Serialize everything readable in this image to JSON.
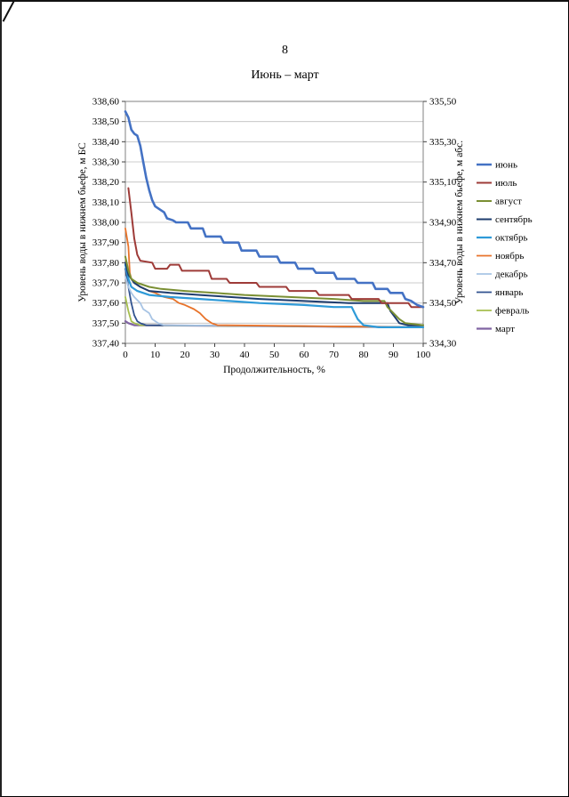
{
  "page": {
    "number": "8",
    "title": "Июнь – март"
  },
  "chart_data": {
    "type": "line",
    "title": "Июнь – март",
    "xlabel": "Продолжительность, %",
    "ylabel_left": "Уровень воды в нижнем бьефе, м БС",
    "ylabel_right": "Уровень воды в нижнем бьефе, м абс.",
    "xlim": [
      0,
      100
    ],
    "xticks": [
      0,
      10,
      20,
      30,
      40,
      50,
      60,
      70,
      80,
      90,
      100
    ],
    "ylim_left": [
      337.4,
      338.6
    ],
    "yticks_left": [
      337.4,
      337.5,
      337.6,
      337.7,
      337.8,
      337.9,
      338.0,
      338.1,
      338.2,
      338.3,
      338.4,
      338.5,
      338.6
    ],
    "ylim_right": [
      334.3,
      335.5
    ],
    "yticks_right": [
      334.3,
      334.5,
      334.7,
      334.9,
      335.1,
      335.3,
      335.5
    ],
    "grid": true,
    "legend_position": "right",
    "grid_color": "#bdbdbd",
    "border_color": "#808080",
    "series": [
      {
        "name": "июнь",
        "color": "#4472C4",
        "width": 2.6,
        "points": [
          [
            0,
            338.55
          ],
          [
            1,
            338.52
          ],
          [
            2,
            338.46
          ],
          [
            3,
            338.44
          ],
          [
            4,
            338.43
          ],
          [
            5,
            338.38
          ],
          [
            6,
            338.3
          ],
          [
            7,
            338.22
          ],
          [
            8,
            338.16
          ],
          [
            9,
            338.11
          ],
          [
            10,
            338.08
          ],
          [
            12,
            338.06
          ],
          [
            13,
            338.05
          ],
          [
            14,
            338.02
          ],
          [
            16,
            338.01
          ],
          [
            17,
            338.0
          ],
          [
            21,
            338.0
          ],
          [
            22,
            337.97
          ],
          [
            26,
            337.97
          ],
          [
            27,
            337.93
          ],
          [
            32,
            337.93
          ],
          [
            33,
            337.9
          ],
          [
            38,
            337.9
          ],
          [
            39,
            337.86
          ],
          [
            44,
            337.86
          ],
          [
            45,
            337.83
          ],
          [
            51,
            337.83
          ],
          [
            52,
            337.8
          ],
          [
            57,
            337.8
          ],
          [
            58,
            337.77
          ],
          [
            63,
            337.77
          ],
          [
            64,
            337.75
          ],
          [
            70,
            337.75
          ],
          [
            71,
            337.72
          ],
          [
            77,
            337.72
          ],
          [
            78,
            337.7
          ],
          [
            83,
            337.7
          ],
          [
            84,
            337.67
          ],
          [
            88,
            337.67
          ],
          [
            89,
            337.65
          ],
          [
            93,
            337.65
          ],
          [
            94,
            337.62
          ],
          [
            96,
            337.61
          ],
          [
            98,
            337.59
          ],
          [
            100,
            337.58
          ]
        ]
      },
      {
        "name": "июль",
        "color": "#9E3B38",
        "width": 2.0,
        "points": [
          [
            1,
            338.17
          ],
          [
            2,
            338.05
          ],
          [
            3,
            337.92
          ],
          [
            4,
            337.84
          ],
          [
            5,
            337.81
          ],
          [
            9,
            337.8
          ],
          [
            10,
            337.77
          ],
          [
            14,
            337.77
          ],
          [
            15,
            337.79
          ],
          [
            18,
            337.79
          ],
          [
            19,
            337.76
          ],
          [
            28,
            337.76
          ],
          [
            29,
            337.72
          ],
          [
            34,
            337.72
          ],
          [
            35,
            337.7
          ],
          [
            44,
            337.7
          ],
          [
            45,
            337.68
          ],
          [
            54,
            337.68
          ],
          [
            55,
            337.66
          ],
          [
            64,
            337.66
          ],
          [
            65,
            337.64
          ],
          [
            75,
            337.64
          ],
          [
            76,
            337.62
          ],
          [
            85,
            337.62
          ],
          [
            86,
            337.6
          ],
          [
            95,
            337.6
          ],
          [
            96,
            337.58
          ],
          [
            100,
            337.58
          ]
        ]
      },
      {
        "name": "август",
        "color": "#7A8F33",
        "width": 2.0,
        "points": [
          [
            0,
            337.83
          ],
          [
            1,
            337.76
          ],
          [
            2,
            337.72
          ],
          [
            4,
            337.7
          ],
          [
            8,
            337.68
          ],
          [
            12,
            337.67
          ],
          [
            20,
            337.66
          ],
          [
            30,
            337.65
          ],
          [
            40,
            337.64
          ],
          [
            55,
            337.63
          ],
          [
            70,
            337.62
          ],
          [
            80,
            337.61
          ],
          [
            87,
            337.61
          ],
          [
            88,
            337.58
          ],
          [
            90,
            337.55
          ],
          [
            92,
            337.52
          ],
          [
            94,
            337.5
          ],
          [
            100,
            337.49
          ]
        ]
      },
      {
        "name": "сентябрь",
        "color": "#1E3C6E",
        "width": 2.0,
        "points": [
          [
            0,
            337.8
          ],
          [
            1,
            337.74
          ],
          [
            3,
            337.7
          ],
          [
            5,
            337.68
          ],
          [
            8,
            337.66
          ],
          [
            15,
            337.65
          ],
          [
            25,
            337.64
          ],
          [
            35,
            337.63
          ],
          [
            45,
            337.62
          ],
          [
            60,
            337.61
          ],
          [
            75,
            337.6
          ],
          [
            88,
            337.6
          ],
          [
            89,
            337.56
          ],
          [
            91,
            337.52
          ],
          [
            92,
            337.5
          ],
          [
            95,
            337.49
          ],
          [
            100,
            337.49
          ]
        ]
      },
      {
        "name": "октябрь",
        "color": "#2E9AD8",
        "width": 2.2,
        "points": [
          [
            0,
            337.79
          ],
          [
            1,
            337.72
          ],
          [
            2,
            337.68
          ],
          [
            4,
            337.66
          ],
          [
            8,
            337.64
          ],
          [
            15,
            337.63
          ],
          [
            25,
            337.62
          ],
          [
            35,
            337.61
          ],
          [
            45,
            337.6
          ],
          [
            60,
            337.59
          ],
          [
            70,
            337.58
          ],
          [
            76,
            337.58
          ],
          [
            77,
            337.55
          ],
          [
            78,
            337.52
          ],
          [
            80,
            337.49
          ],
          [
            85,
            337.48
          ],
          [
            100,
            337.48
          ]
        ]
      },
      {
        "name": "ноябрь",
        "color": "#E8732A",
        "width": 1.8,
        "points": [
          [
            0,
            337.97
          ],
          [
            1,
            337.88
          ],
          [
            1.5,
            337.75
          ],
          [
            2,
            337.72
          ],
          [
            3,
            337.7
          ],
          [
            5,
            337.68
          ],
          [
            8,
            337.66
          ],
          [
            10,
            337.65
          ],
          [
            13,
            337.63
          ],
          [
            16,
            337.62
          ],
          [
            18,
            337.6
          ],
          [
            20,
            337.59
          ],
          [
            23,
            337.57
          ],
          [
            25,
            337.55
          ],
          [
            27,
            337.52
          ],
          [
            29,
            337.5
          ],
          [
            31,
            337.49
          ],
          [
            100,
            337.48
          ]
        ]
      },
      {
        "name": "декабрь",
        "color": "#A8C4E4",
        "width": 1.8,
        "points": [
          [
            0,
            337.73
          ],
          [
            1,
            337.68
          ],
          [
            2,
            337.65
          ],
          [
            3,
            337.63
          ],
          [
            5,
            337.6
          ],
          [
            6,
            337.57
          ],
          [
            8,
            337.55
          ],
          [
            9,
            337.52
          ],
          [
            11,
            337.5
          ],
          [
            13,
            337.49
          ],
          [
            100,
            337.48
          ]
        ]
      },
      {
        "name": "январь",
        "color": "#31538F",
        "width": 1.8,
        "points": [
          [
            0,
            337.77
          ],
          [
            1,
            337.68
          ],
          [
            2,
            337.6
          ],
          [
            3,
            337.54
          ],
          [
            4,
            337.51
          ],
          [
            5,
            337.5
          ],
          [
            7,
            337.49
          ],
          [
            100,
            337.48
          ]
        ]
      },
      {
        "name": "февраль",
        "color": "#A6BE4F",
        "width": 1.8,
        "points": [
          [
            0,
            337.63
          ],
          [
            1,
            337.56
          ],
          [
            2,
            337.51
          ],
          [
            3,
            337.5
          ],
          [
            5,
            337.49
          ],
          [
            100,
            337.48
          ]
        ]
      },
      {
        "name": "март",
        "color": "#8064A2",
        "width": 2.2,
        "points": [
          [
            0,
            337.51
          ],
          [
            1,
            337.5
          ],
          [
            3,
            337.49
          ],
          [
            100,
            337.48
          ]
        ]
      }
    ]
  }
}
